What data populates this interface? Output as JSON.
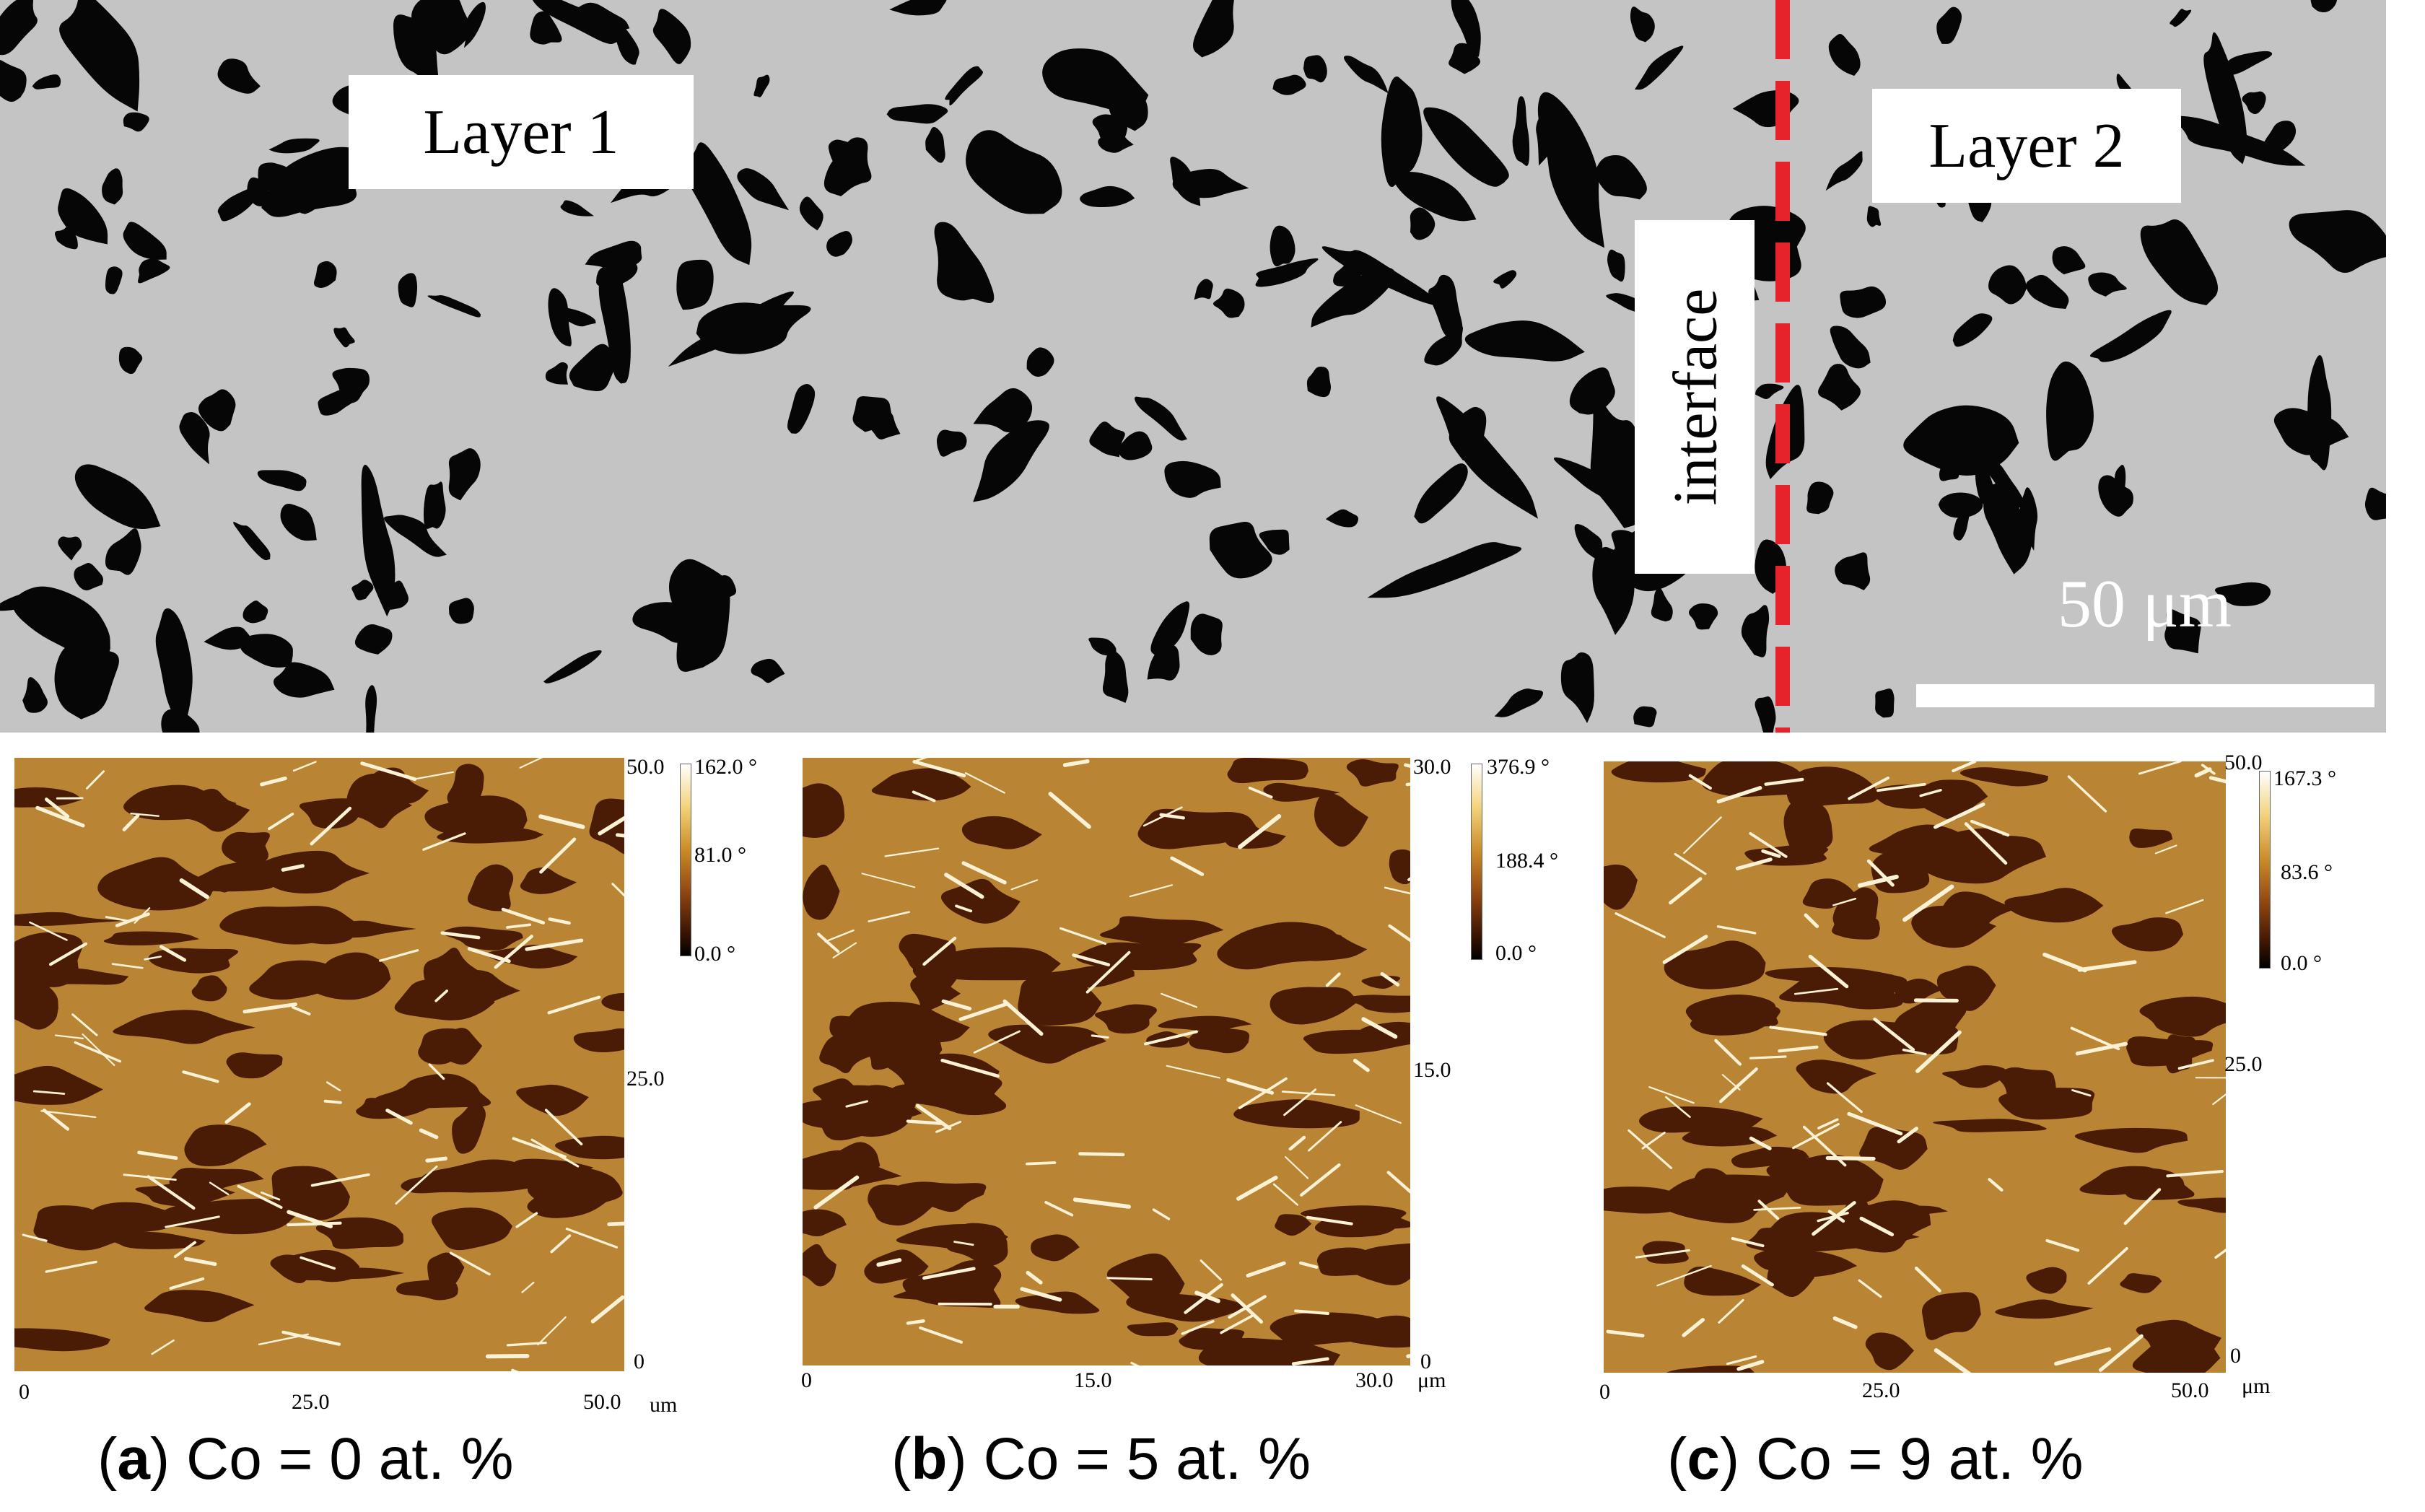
{
  "sem": {
    "layer1": "Layer 1",
    "layer2": "Layer 2",
    "interface": "interface",
    "scale": "50 μm"
  },
  "panels": [
    {
      "x_ticks": [
        "0",
        "25.0",
        "50.0"
      ],
      "y_ticks": [
        "50.0",
        "25.0",
        "0"
      ],
      "unit": "um",
      "colorbar": [
        "162.0 °",
        "81.0 °",
        "0.0 °"
      ],
      "caption_letter": "a",
      "caption_text": "Co = 0 at. %"
    },
    {
      "x_ticks": [
        "0",
        "15.0",
        "30.0"
      ],
      "y_ticks": [
        "30.0",
        "15.0",
        "0"
      ],
      "unit": "μm",
      "colorbar": [
        "376.9 °",
        "188.4 °",
        "0.0 °"
      ],
      "caption_letter": "b",
      "caption_text": "Co = 5 at. %"
    },
    {
      "x_ticks": [
        "0",
        "25.0",
        "50.0"
      ],
      "y_ticks": [
        "50.0",
        "25.0",
        "0"
      ],
      "unit": "μm",
      "colorbar": [
        "167.3 °",
        "83.6 °",
        "0.0 °"
      ],
      "caption_letter": "c",
      "caption_text": "Co = 9 at. %"
    }
  ],
  "colors": {
    "sem_matrix": "#c4c4c4",
    "sem_phase": "#060606",
    "interface_line": "#e6232a",
    "afm_base": "#b98535",
    "afm_dark": "#4a1b05",
    "afm_bright": "#fbf2d6"
  }
}
